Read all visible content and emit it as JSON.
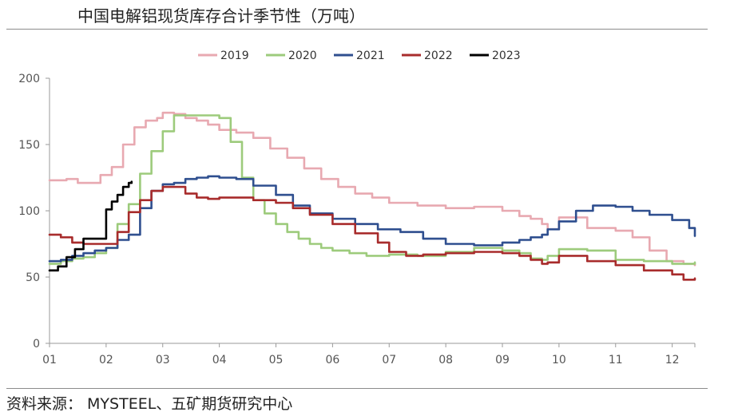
{
  "title": "中国电解铝现货库存合计季节性（万吨）",
  "source": "资料来源：  MYSTEEL、五矿期货研究中心",
  "chart_data": {
    "type": "line",
    "title": "中国电解铝现货库存合计季节性（万吨）",
    "xlabel": "",
    "ylabel": "",
    "x_ticks": [
      "01",
      "02",
      "03",
      "04",
      "05",
      "06",
      "07",
      "08",
      "09",
      "10",
      "11",
      "12"
    ],
    "xlim": [
      1,
      12.4
    ],
    "ylim": [
      0,
      200
    ],
    "y_ticks": [
      0,
      50,
      100,
      150,
      200
    ],
    "legend": "top",
    "grid": false,
    "step": true,
    "series": [
      {
        "name": "2019",
        "color": "#e8a9b1",
        "x": [
          1.0,
          1.3,
          1.5,
          1.7,
          1.9,
          2.1,
          2.2,
          2.3,
          2.5,
          2.7,
          2.9,
          3.0,
          3.2,
          3.4,
          3.6,
          3.8,
          4.0,
          4.3,
          4.6,
          4.9,
          5.2,
          5.5,
          5.8,
          6.1,
          6.4,
          6.7,
          7.0,
          7.5,
          8.0,
          8.5,
          9.0,
          9.3,
          9.5,
          9.7,
          9.8,
          10.0,
          10.5,
          11.0,
          11.3,
          11.6,
          11.9,
          12.2,
          12.4
        ],
        "y": [
          123,
          124,
          121,
          121,
          127,
          133,
          133,
          150,
          163,
          168,
          170,
          174,
          173,
          170,
          168,
          165,
          161,
          159,
          155,
          147,
          140,
          132,
          124,
          118,
          113,
          110,
          106,
          104,
          102,
          103,
          100,
          96,
          94,
          90,
          86,
          95,
          87,
          85,
          80,
          70,
          62,
          60,
          59
        ]
      },
      {
        "name": "2020",
        "color": "#9dcb7c",
        "x": [
          1.0,
          1.2,
          1.4,
          1.6,
          1.8,
          2.0,
          2.2,
          2.4,
          2.6,
          2.8,
          3.0,
          3.2,
          3.4,
          3.6,
          3.8,
          4.0,
          4.2,
          4.4,
          4.6,
          4.8,
          5.0,
          5.2,
          5.4,
          5.6,
          5.8,
          6.0,
          6.3,
          6.6,
          7.0,
          7.5,
          8.0,
          8.5,
          9.0,
          9.3,
          9.5,
          9.7,
          9.8,
          10.0,
          10.5,
          11.0,
          11.5,
          12.0,
          12.4
        ],
        "y": [
          60,
          62,
          64,
          65,
          68,
          72,
          90,
          105,
          128,
          145,
          160,
          172,
          172,
          172,
          172,
          170,
          152,
          125,
          108,
          98,
          90,
          84,
          79,
          75,
          72,
          70,
          68,
          66,
          67,
          66,
          69,
          72,
          70,
          68,
          64,
          63,
          66,
          71,
          70,
          63,
          62,
          60,
          61
        ]
      },
      {
        "name": "2021",
        "color": "#2f4f8f",
        "x": [
          1.0,
          1.2,
          1.4,
          1.6,
          1.8,
          2.0,
          2.2,
          2.4,
          2.6,
          2.8,
          3.0,
          3.2,
          3.4,
          3.6,
          3.8,
          4.0,
          4.3,
          4.6,
          5.0,
          5.3,
          5.6,
          6.0,
          6.4,
          6.8,
          7.2,
          7.6,
          8.0,
          8.5,
          9.0,
          9.3,
          9.5,
          9.7,
          9.8,
          10.0,
          10.3,
          10.6,
          11.0,
          11.3,
          11.6,
          12.0,
          12.3,
          12.4
        ],
        "y": [
          62,
          63,
          66,
          68,
          70,
          72,
          78,
          82,
          102,
          115,
          120,
          121,
          124,
          125,
          126,
          125,
          124,
          119,
          112,
          104,
          98,
          94,
          90,
          86,
          84,
          79,
          75,
          74,
          76,
          78,
          80,
          82,
          86,
          92,
          100,
          104,
          103,
          100,
          97,
          93,
          87,
          81
        ]
      },
      {
        "name": "2022",
        "color": "#a82c2c",
        "x": [
          1.0,
          1.2,
          1.4,
          1.6,
          1.8,
          2.0,
          2.2,
          2.4,
          2.6,
          2.8,
          3.0,
          3.2,
          3.4,
          3.6,
          3.8,
          4.0,
          4.3,
          4.6,
          5.0,
          5.3,
          5.6,
          6.0,
          6.4,
          6.8,
          7.0,
          7.3,
          7.6,
          8.0,
          8.5,
          9.0,
          9.3,
          9.5,
          9.7,
          9.8,
          10.0,
          10.5,
          11.0,
          11.5,
          12.0,
          12.2,
          12.4
        ],
        "y": [
          82,
          80,
          76,
          75,
          75,
          75,
          84,
          99,
          108,
          115,
          118,
          118,
          113,
          110,
          109,
          110,
          110,
          108,
          106,
          102,
          97,
          90,
          83,
          76,
          69,
          66,
          67,
          68,
          69,
          68,
          66,
          63,
          60,
          61,
          66,
          62,
          59,
          55,
          52,
          48,
          49
        ]
      },
      {
        "name": "2023",
        "color": "#000000",
        "x": [
          1.0,
          1.15,
          1.3,
          1.45,
          1.6,
          1.75,
          1.9,
          2.0,
          2.1,
          2.2,
          2.3,
          2.4,
          2.45
        ],
        "y": [
          55,
          58,
          65,
          71,
          79,
          79,
          79,
          101,
          107,
          112,
          118,
          121,
          122
        ]
      }
    ]
  }
}
